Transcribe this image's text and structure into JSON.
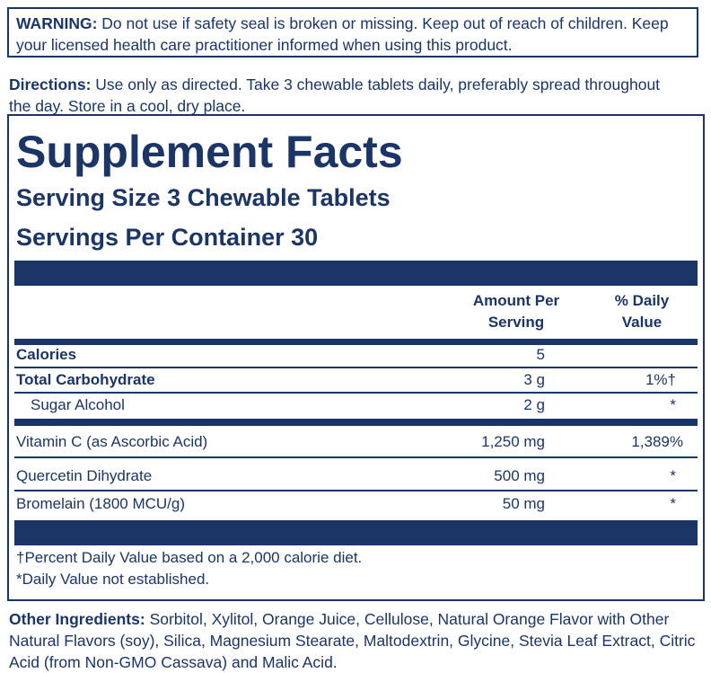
{
  "warning": {
    "label": "WARNING:",
    "text": "Do not use if safety seal is broken or missing. Keep out of reach of children. Keep your licensed health care practitioner informed when using this product."
  },
  "directions": {
    "label": "Directions:",
    "text": "Use only as directed. Take 3 chewable tablets daily, preferably spread throughout the day. Store in a cool, dry place."
  },
  "facts": {
    "title": "Supplement Facts",
    "serving_size": "Serving Size 3 Chewable Tablets",
    "servings_per_container": "Servings Per Container 30",
    "header": {
      "amount": "Amount Per Serving",
      "daily_value": "% Daily Value"
    },
    "rows": [
      {
        "name": "Calories",
        "amount": "5"
      },
      {
        "name": "Total Carbohydrate",
        "amount": "3 g",
        "daily_value": "1%†"
      },
      {
        "name": "Sugar Alcohol",
        "amount": "2 g",
        "daily_value": "*"
      },
      {
        "name": "Vitamin C (as Ascorbic Acid)",
        "amount": "1,250 mg",
        "daily_value": "1,389%"
      },
      {
        "name": "Quercetin Dihydrate",
        "amount": "500 mg",
        "daily_value": "*"
      },
      {
        "name": "Bromelain (1800 MCU/g)",
        "amount": "50 mg",
        "daily_value": "*"
      }
    ],
    "footnotes": [
      "†Percent Daily Value based on a 2,000 calorie diet.",
      "*Daily Value not established."
    ]
  },
  "other_ingredients": {
    "label": "Other Ingredients:",
    "text": "Sorbitol, Xylitol, Orange Juice, Cellulose, Natural Orange Flavor with Other Natural Flavors (soy), Silica, Magnesium Stearate, Maltodextrin, Glycine, Stevia Leaf Extract, Citric Acid (from Non-GMO Cassava) and Malic Acid."
  }
}
